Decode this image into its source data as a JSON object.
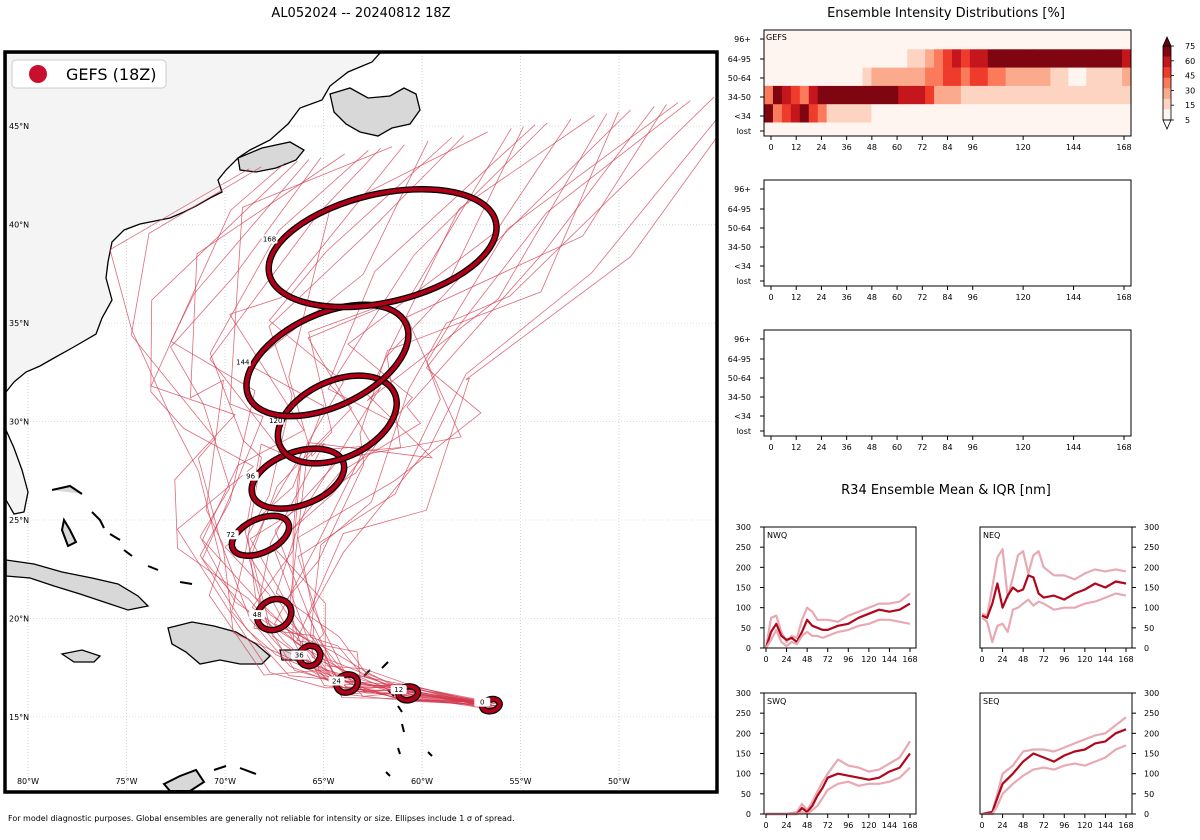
{
  "map": {
    "title": "AL052024 -- 20240812 18Z",
    "legend_label": "GEFS (18Z)",
    "legend_color": "#c8102e",
    "track_color": "#d23a4f",
    "ellipse_color": "#b00018",
    "lat_labels": [
      "45°N",
      "40°N",
      "35°N",
      "30°N",
      "25°N",
      "20°N",
      "15°N"
    ],
    "lon_labels": [
      "80°W",
      "75°W",
      "70°W",
      "65°W",
      "60°W",
      "55°W",
      "50°W"
    ],
    "footnote": "For model diagnostic purposes. Global ensembles are generally not reliable for intensity or size. Ellipses include 1 σ of spread."
  },
  "chart_data": [
    {
      "type": "map-tracks",
      "name": "track-map",
      "lat_range": [
        12,
        47
      ],
      "lon_range": [
        -81,
        -45
      ],
      "forecast_hours": [
        0,
        12,
        24,
        36,
        48,
        72,
        96,
        120,
        144,
        168
      ],
      "mean_track": [
        {
          "hour": 0,
          "lon": -56.5,
          "lat": 15.6
        },
        {
          "hour": 12,
          "lon": -60.7,
          "lat": 16.2
        },
        {
          "hour": 24,
          "lon": -63.8,
          "lat": 16.7
        },
        {
          "hour": 36,
          "lon": -65.7,
          "lat": 18.1
        },
        {
          "hour": 48,
          "lon": -67.5,
          "lat": 20.2
        },
        {
          "hour": 72,
          "lon": -68.2,
          "lat": 24.2
        },
        {
          "hour": 96,
          "lon": -66.3,
          "lat": 27.1
        },
        {
          "hour": 120,
          "lon": -64.3,
          "lat": 30.1
        },
        {
          "hour": 144,
          "lon": -64.8,
          "lat": 33.1
        },
        {
          "hour": 168,
          "lon": -62.0,
          "lat": 38.8
        }
      ]
    },
    {
      "type": "heatmap",
      "name": "intensity-gefs",
      "title": "Ensemble Intensity Distributions [%]",
      "panel_label": "GEFS",
      "rows": [
        "96+",
        "64-95",
        "50-64",
        "34-50",
        "<34",
        "lost"
      ],
      "x_ticks": [
        "0",
        "12",
        "24",
        "36",
        "48",
        "60",
        "72",
        "84",
        "96",
        "120",
        "144",
        "168"
      ],
      "colorbar_ticks": [
        "75",
        "60",
        "45",
        "30",
        "15",
        "5"
      ],
      "colors": [
        "#fff5f0",
        "#fdd4c2",
        "#fcaa8e",
        "#fb7a5b",
        "#ef3b2c",
        "#c4161c",
        "#7f0610"
      ],
      "cells": {
        "64-95": [
          0,
          0,
          0,
          0,
          0,
          0,
          0,
          0,
          0,
          0,
          0,
          0,
          0,
          0,
          0,
          0,
          1,
          1,
          2,
          3,
          4,
          5,
          4,
          5,
          5,
          6,
          6,
          6,
          6,
          6,
          6,
          6,
          6,
          6,
          6,
          6,
          6,
          6,
          6,
          6,
          5
        ],
        "50-64": [
          0,
          0,
          0,
          0,
          0,
          0,
          0,
          0,
          0,
          0,
          0,
          1,
          2,
          2,
          2,
          2,
          2,
          2,
          3,
          3,
          4,
          4,
          3,
          4,
          4,
          3,
          3,
          2,
          2,
          2,
          2,
          2,
          1,
          1,
          0,
          0,
          1,
          1,
          1,
          1,
          2
        ],
        "34-50": [
          3,
          6,
          5,
          4,
          3,
          5,
          6,
          6,
          6,
          6,
          6,
          6,
          6,
          6,
          6,
          5,
          5,
          5,
          4,
          2,
          2,
          2,
          1,
          1,
          1,
          1,
          1,
          1,
          1,
          1,
          1,
          1,
          1,
          1,
          1,
          1,
          1,
          1,
          1,
          1,
          1
        ],
        "<34": [
          6,
          3,
          4,
          5,
          6,
          4,
          3,
          1,
          1,
          1,
          1,
          1,
          0,
          0,
          0,
          0,
          0,
          0,
          0,
          0,
          0,
          0,
          0,
          0,
          0,
          0,
          0,
          0,
          0,
          0,
          0,
          0,
          0,
          0,
          0,
          0,
          0,
          0,
          0,
          0,
          0
        ],
        "96+": [
          0,
          0,
          0,
          0,
          0,
          0,
          0,
          0,
          0,
          0,
          0,
          0,
          0,
          0,
          0,
          0,
          0,
          0,
          0,
          0,
          0,
          0,
          0,
          0,
          0,
          0,
          0,
          0,
          0,
          0,
          0,
          0,
          0,
          0,
          0,
          0,
          0,
          0,
          0,
          0,
          0
        ]
      }
    },
    {
      "type": "line",
      "name": "r34-nwq",
      "title": "R34 Ensemble Mean & IQR [nm]",
      "panel_label": "NWQ",
      "ylim": [
        0,
        300
      ],
      "y_ticks": [
        "300",
        "250",
        "200",
        "150",
        "100",
        "50",
        "0"
      ],
      "x_ticks": [
        "0",
        "24",
        "48",
        "72",
        "96",
        "120",
        "144",
        "168"
      ],
      "series": [
        {
          "name": "upper",
          "x": [
            0,
            6,
            12,
            18,
            24,
            30,
            36,
            42,
            48,
            54,
            60,
            66,
            72,
            84,
            96,
            108,
            120,
            132,
            144,
            156,
            168
          ],
          "values": [
            0,
            75,
            80,
            40,
            15,
            30,
            25,
            70,
            100,
            90,
            70,
            70,
            70,
            65,
            80,
            90,
            100,
            110,
            110,
            115,
            135
          ]
        },
        {
          "name": "mean",
          "x": [
            0,
            6,
            12,
            18,
            24,
            30,
            36,
            42,
            48,
            54,
            60,
            66,
            72,
            84,
            96,
            108,
            120,
            132,
            144,
            156,
            168
          ],
          "values": [
            0,
            40,
            60,
            30,
            20,
            25,
            15,
            40,
            70,
            55,
            50,
            45,
            45,
            55,
            60,
            75,
            85,
            95,
            90,
            95,
            110
          ]
        },
        {
          "name": "lower",
          "x": [
            0,
            6,
            12,
            18,
            24,
            30,
            36,
            42,
            48,
            54,
            60,
            66,
            72,
            84,
            96,
            108,
            120,
            132,
            144,
            156,
            168
          ],
          "values": [
            0,
            20,
            45,
            15,
            5,
            15,
            10,
            30,
            40,
            30,
            30,
            25,
            30,
            40,
            45,
            55,
            60,
            70,
            70,
            65,
            60
          ]
        }
      ]
    },
    {
      "type": "line",
      "name": "r34-neq",
      "panel_label": "NEQ",
      "ylim": [
        0,
        300
      ],
      "y_ticks": [
        "300",
        "250",
        "200",
        "150",
        "100",
        "50",
        "0"
      ],
      "x_ticks": [
        "0",
        "24",
        "48",
        "72",
        "96",
        "120",
        "144",
        "168"
      ],
      "series": [
        {
          "name": "upper",
          "x": [
            0,
            6,
            12,
            18,
            24,
            30,
            36,
            42,
            48,
            54,
            60,
            66,
            72,
            84,
            96,
            108,
            120,
            132,
            144,
            156,
            168
          ],
          "values": [
            85,
            80,
            150,
            225,
            245,
            125,
            175,
            230,
            240,
            185,
            230,
            240,
            200,
            180,
            180,
            170,
            185,
            195,
            190,
            195,
            190
          ]
        },
        {
          "name": "mean",
          "x": [
            0,
            6,
            12,
            18,
            24,
            30,
            36,
            42,
            48,
            54,
            60,
            66,
            72,
            84,
            96,
            108,
            120,
            132,
            144,
            156,
            168
          ],
          "values": [
            80,
            75,
            110,
            160,
            100,
            130,
            150,
            140,
            145,
            180,
            175,
            135,
            125,
            130,
            120,
            135,
            145,
            160,
            150,
            165,
            160
          ]
        },
        {
          "name": "lower",
          "x": [
            0,
            6,
            12,
            18,
            24,
            30,
            36,
            42,
            48,
            54,
            60,
            66,
            72,
            84,
            96,
            108,
            120,
            132,
            144,
            156,
            168
          ],
          "values": [
            75,
            65,
            15,
            55,
            60,
            40,
            95,
            100,
            110,
            120,
            105,
            115,
            110,
            95,
            100,
            100,
            110,
            115,
            125,
            135,
            130
          ]
        }
      ]
    },
    {
      "type": "line",
      "name": "r34-swq",
      "panel_label": "SWQ",
      "ylim": [
        0,
        300
      ],
      "y_ticks": [
        "300",
        "250",
        "200",
        "150",
        "100",
        "50",
        "0"
      ],
      "x_ticks": [
        "0",
        "24",
        "48",
        "72",
        "96",
        "120",
        "144",
        "168"
      ],
      "series": [
        {
          "name": "upper",
          "x": [
            0,
            12,
            24,
            36,
            42,
            48,
            54,
            60,
            66,
            72,
            84,
            96,
            108,
            120,
            132,
            144,
            156,
            168
          ],
          "values": [
            0,
            0,
            0,
            5,
            25,
            10,
            30,
            55,
            80,
            100,
            135,
            120,
            115,
            105,
            110,
            125,
            140,
            180
          ]
        },
        {
          "name": "mean",
          "x": [
            0,
            12,
            24,
            36,
            42,
            48,
            54,
            60,
            66,
            72,
            84,
            96,
            108,
            120,
            132,
            144,
            156,
            168
          ],
          "values": [
            0,
            0,
            0,
            0,
            15,
            5,
            20,
            45,
            65,
            90,
            100,
            95,
            90,
            85,
            90,
            105,
            115,
            150
          ]
        },
        {
          "name": "lower",
          "x": [
            0,
            12,
            24,
            36,
            42,
            48,
            54,
            60,
            66,
            72,
            84,
            96,
            108,
            120,
            132,
            144,
            156,
            168
          ],
          "values": [
            0,
            0,
            0,
            0,
            5,
            0,
            10,
            20,
            40,
            60,
            75,
            80,
            70,
            75,
            75,
            80,
            90,
            115
          ]
        }
      ]
    },
    {
      "type": "line",
      "name": "r34-seq",
      "panel_label": "SEQ",
      "ylim": [
        0,
        300
      ],
      "y_ticks": [
        "300",
        "250",
        "200",
        "150",
        "100",
        "50",
        "0"
      ],
      "x_ticks": [
        "0",
        "24",
        "48",
        "72",
        "96",
        "120",
        "144",
        "168"
      ],
      "series": [
        {
          "name": "upper",
          "x": [
            0,
            12,
            18,
            24,
            36,
            48,
            60,
            72,
            84,
            96,
            108,
            120,
            132,
            144,
            156,
            168
          ],
          "values": [
            0,
            5,
            50,
            100,
            120,
            155,
            160,
            160,
            155,
            165,
            175,
            185,
            195,
            200,
            220,
            240
          ]
        },
        {
          "name": "mean",
          "x": [
            0,
            12,
            18,
            24,
            36,
            48,
            60,
            72,
            84,
            96,
            108,
            120,
            132,
            144,
            156,
            168
          ],
          "values": [
            0,
            5,
            40,
            75,
            100,
            130,
            150,
            140,
            130,
            145,
            155,
            160,
            175,
            180,
            200,
            210
          ]
        },
        {
          "name": "lower",
          "x": [
            0,
            12,
            18,
            24,
            36,
            48,
            60,
            72,
            84,
            96,
            108,
            120,
            132,
            144,
            156,
            168
          ],
          "values": [
            0,
            0,
            20,
            50,
            75,
            95,
            110,
            115,
            110,
            120,
            125,
            120,
            130,
            140,
            160,
            170
          ]
        }
      ]
    }
  ]
}
